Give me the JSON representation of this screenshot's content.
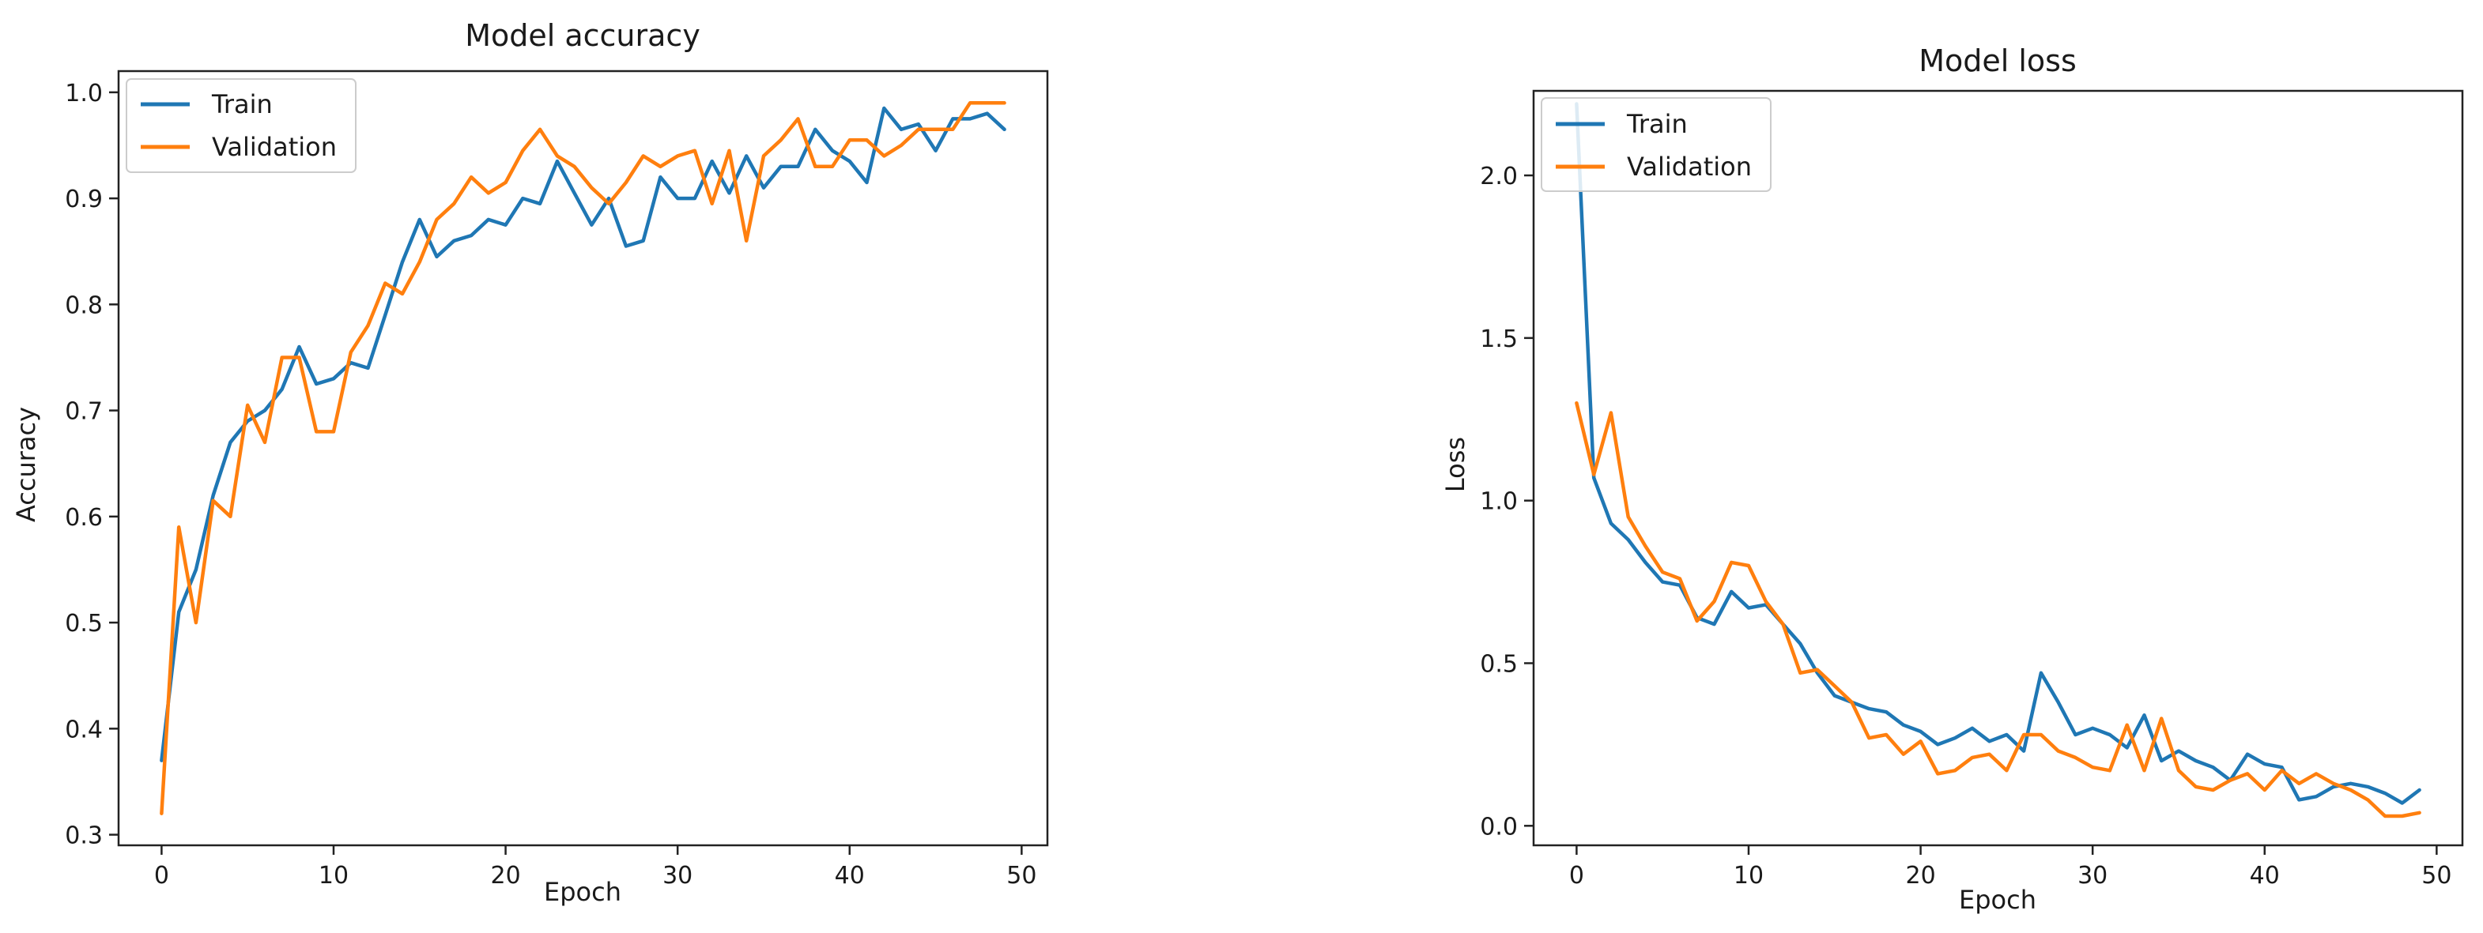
{
  "figure": {
    "colors": {
      "train": "#1f77b4",
      "validation": "#ff7f0e"
    }
  },
  "chart_data": [
    {
      "type": "line",
      "title": "Model accuracy",
      "xlabel": "Epoch",
      "ylabel": "Accuracy",
      "xlim": [
        -2.5,
        51.5
      ],
      "ylim": [
        0.29,
        1.02
      ],
      "xticks": [
        0,
        10,
        20,
        30,
        40,
        50
      ],
      "xtick_labels": [
        "0",
        "10",
        "20",
        "30",
        "40",
        "50"
      ],
      "yticks": [
        0.3,
        0.4,
        0.5,
        0.6,
        0.7,
        0.8,
        0.9,
        1.0
      ],
      "ytick_labels": [
        "0.3",
        "0.4",
        "0.5",
        "0.6",
        "0.7",
        "0.8",
        "0.9",
        "1.0"
      ],
      "grid": false,
      "legend": "upper-left",
      "x": [
        0,
        1,
        2,
        3,
        4,
        5,
        6,
        7,
        8,
        9,
        10,
        11,
        12,
        13,
        14,
        15,
        16,
        17,
        18,
        19,
        20,
        21,
        22,
        23,
        24,
        25,
        26,
        27,
        28,
        29,
        30,
        31,
        32,
        33,
        34,
        35,
        36,
        37,
        38,
        39,
        40,
        41,
        42,
        43,
        44,
        45,
        46,
        47,
        48,
        49
      ],
      "series": [
        {
          "name": "Train",
          "color_key": "train",
          "values": [
            0.37,
            0.51,
            0.55,
            0.62,
            0.67,
            0.69,
            0.7,
            0.72,
            0.76,
            0.725,
            0.73,
            0.745,
            0.74,
            0.79,
            0.84,
            0.88,
            0.845,
            0.86,
            0.865,
            0.88,
            0.875,
            0.9,
            0.895,
            0.935,
            0.905,
            0.875,
            0.9,
            0.855,
            0.86,
            0.92,
            0.9,
            0.9,
            0.935,
            0.905,
            0.94,
            0.91,
            0.93,
            0.93,
            0.965,
            0.945,
            0.935,
            0.915,
            0.985,
            0.965,
            0.97,
            0.945,
            0.975,
            0.975,
            0.98,
            0.965
          ]
        },
        {
          "name": "Validation",
          "color_key": "validation",
          "values": [
            0.32,
            0.59,
            0.5,
            0.615,
            0.6,
            0.705,
            0.67,
            0.75,
            0.75,
            0.68,
            0.68,
            0.755,
            0.78,
            0.82,
            0.81,
            0.84,
            0.88,
            0.895,
            0.92,
            0.905,
            0.915,
            0.945,
            0.965,
            0.94,
            0.93,
            0.91,
            0.895,
            0.915,
            0.94,
            0.93,
            0.94,
            0.945,
            0.895,
            0.945,
            0.86,
            0.94,
            0.955,
            0.975,
            0.93,
            0.93,
            0.955,
            0.955,
            0.94,
            0.95,
            0.965,
            0.965,
            0.965,
            0.99,
            0.99,
            0.99
          ]
        }
      ]
    },
    {
      "type": "line",
      "title": "Model loss",
      "xlabel": "Epoch",
      "ylabel": "Loss",
      "xlim": [
        -2.5,
        51.5
      ],
      "ylim": [
        -0.06,
        2.26
      ],
      "xticks": [
        0,
        10,
        20,
        30,
        40,
        50
      ],
      "xtick_labels": [
        "0",
        "10",
        "20",
        "30",
        "40",
        "50"
      ],
      "yticks": [
        0.0,
        0.5,
        1.0,
        1.5,
        2.0
      ],
      "ytick_labels": [
        "0.0",
        "0.5",
        "1.0",
        "1.5",
        "2.0"
      ],
      "grid": false,
      "legend": "upper-left",
      "x": [
        0,
        1,
        2,
        3,
        4,
        5,
        6,
        7,
        8,
        9,
        10,
        11,
        12,
        13,
        14,
        15,
        16,
        17,
        18,
        19,
        20,
        21,
        22,
        23,
        24,
        25,
        26,
        27,
        28,
        29,
        30,
        31,
        32,
        33,
        34,
        35,
        36,
        37,
        38,
        39,
        40,
        41,
        42,
        43,
        44,
        45,
        46,
        47,
        48,
        49
      ],
      "series": [
        {
          "name": "Train",
          "color_key": "train",
          "values": [
            2.22,
            1.07,
            0.93,
            0.88,
            0.81,
            0.75,
            0.74,
            0.64,
            0.62,
            0.72,
            0.67,
            0.68,
            0.62,
            0.56,
            0.47,
            0.4,
            0.38,
            0.36,
            0.35,
            0.31,
            0.29,
            0.25,
            0.27,
            0.3,
            0.26,
            0.28,
            0.23,
            0.47,
            0.38,
            0.28,
            0.3,
            0.28,
            0.24,
            0.34,
            0.2,
            0.23,
            0.2,
            0.18,
            0.14,
            0.22,
            0.19,
            0.18,
            0.08,
            0.09,
            0.12,
            0.13,
            0.12,
            0.1,
            0.07,
            0.11
          ]
        },
        {
          "name": "Validation",
          "color_key": "validation",
          "values": [
            1.3,
            1.08,
            1.27,
            0.95,
            0.86,
            0.78,
            0.76,
            0.63,
            0.69,
            0.81,
            0.8,
            0.69,
            0.62,
            0.47,
            0.48,
            0.43,
            0.38,
            0.27,
            0.28,
            0.22,
            0.26,
            0.16,
            0.17,
            0.21,
            0.22,
            0.17,
            0.28,
            0.28,
            0.23,
            0.21,
            0.18,
            0.17,
            0.31,
            0.17,
            0.33,
            0.17,
            0.12,
            0.11,
            0.14,
            0.16,
            0.11,
            0.17,
            0.13,
            0.16,
            0.13,
            0.11,
            0.08,
            0.03,
            0.03,
            0.04
          ]
        }
      ]
    }
  ]
}
